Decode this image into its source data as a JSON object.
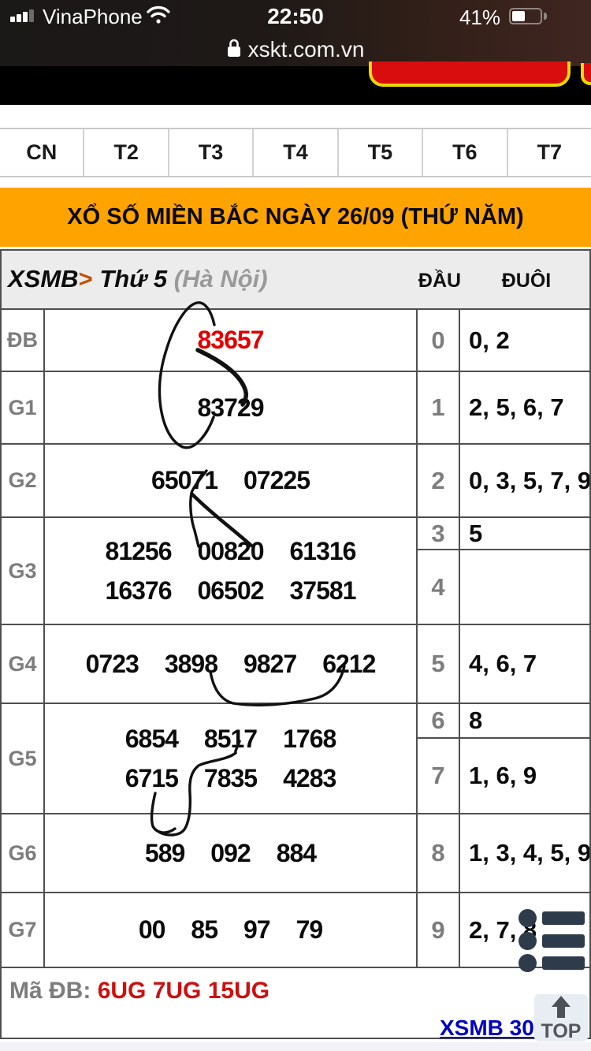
{
  "status_bar": {
    "carrier": "VinaPhone",
    "time": "22:50",
    "battery_percent": "41%",
    "icons": {
      "signal": "signal-bars-icon",
      "wifi": "wifi-icon",
      "battery": "battery-icon"
    }
  },
  "url_bar": {
    "url": "xskt.com.vn",
    "icon": "lock-icon"
  },
  "tabs": [
    "CN",
    "T2",
    "T3",
    "T4",
    "T5",
    "T6",
    "T7"
  ],
  "title_banner": "XỔ SỐ MIỀN BẮC NGÀY 26/09 (THỨ NĂM)",
  "breadcrumb": {
    "site": "XSMB",
    "separator": ">",
    "day": "Thứ 5",
    "region": "(Hà Nội)"
  },
  "column_headers": {
    "dau": "ĐẦU",
    "duoi": "ĐUÔI"
  },
  "results": [
    {
      "label": "ĐB",
      "special": true,
      "lines": [
        [
          "83657"
        ]
      ]
    },
    {
      "label": "G1",
      "special": false,
      "lines": [
        [
          "83729"
        ]
      ]
    },
    {
      "label": "G2",
      "special": false,
      "lines": [
        [
          "65071",
          "07225"
        ]
      ]
    },
    {
      "label": "G3",
      "special": false,
      "lines": [
        [
          "81256",
          "00820",
          "61316"
        ],
        [
          "16376",
          "06502",
          "37581"
        ]
      ]
    },
    {
      "label": "G4",
      "special": false,
      "lines": [
        [
          "0723",
          "3898",
          "9827",
          "6212"
        ]
      ]
    },
    {
      "label": "G5",
      "special": false,
      "lines": [
        [
          "6854",
          "8517",
          "1768"
        ],
        [
          "6715",
          "7835",
          "4283"
        ]
      ]
    },
    {
      "label": "G6",
      "special": false,
      "lines": [
        [
          "589",
          "092",
          "884"
        ]
      ]
    },
    {
      "label": "G7",
      "special": false,
      "lines": [
        [
          "00",
          "85",
          "97",
          "79"
        ]
      ]
    }
  ],
  "dau_duoi": [
    {
      "digit": "0",
      "tails": "0, 2"
    },
    {
      "digit": "1",
      "tails": "2, 5, 6, 7"
    },
    {
      "digit": "2",
      "tails": "0, 3, 5, 7, 9"
    },
    {
      "digit": "3",
      "tails": "5"
    },
    {
      "digit": "4",
      "tails": ""
    },
    {
      "digit": "5",
      "tails": "4, 6, 7"
    },
    {
      "digit": "6",
      "tails": "8"
    },
    {
      "digit": "7",
      "tails": "1, 6, 9"
    },
    {
      "digit": "8",
      "tails": "1, 3, 4, 5, 9"
    },
    {
      "digit": "9",
      "tails": "2, 7, 8"
    }
  ],
  "footer": {
    "ma_db_label": "Mã ĐB:",
    "ma_db_value": "6UG 7UG 15UG",
    "link_label": "XSMB 30 n",
    "top_button": "TOP",
    "icons": {
      "menu": "list-menu-icon",
      "top_arrow": "up-arrow-icon"
    }
  },
  "colors": {
    "accent_orange": "#ffa300",
    "special_red": "#e10000",
    "code_red": "#cc1010",
    "link_blue": "#0000c0",
    "menu_dark": "#2d3b4b"
  }
}
